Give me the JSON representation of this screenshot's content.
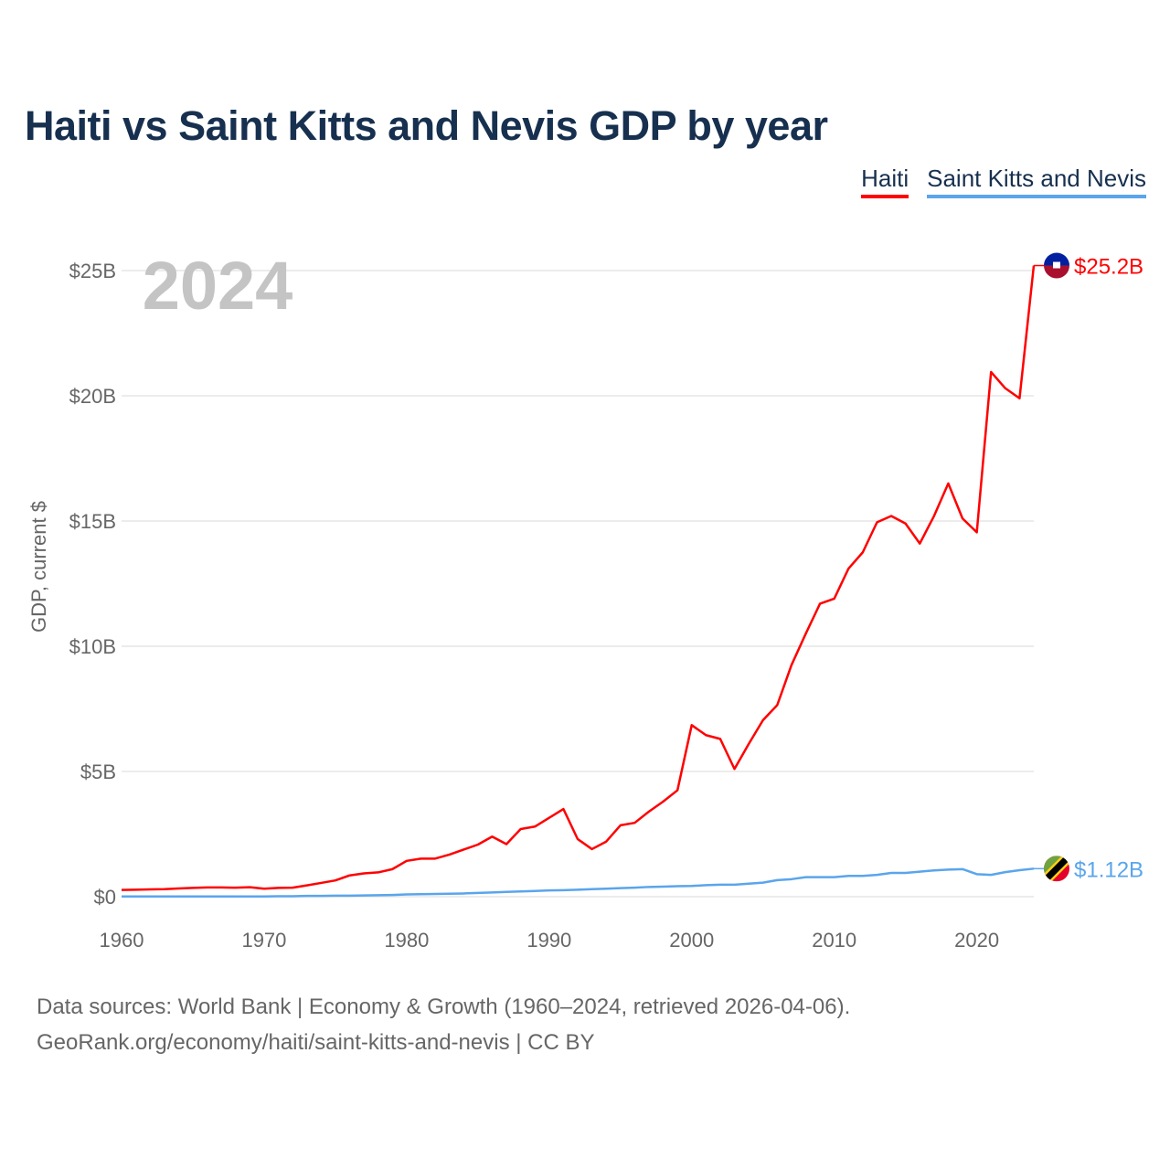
{
  "title": "Haiti vs Saint Kitts and Nevis GDP by year",
  "source_line1": "Data sources: World Bank | Economy & Growth (1960–2024, retrieved 2026-04-06).",
  "source_line2": "GeoRank.org/economy/haiti/saint-kitts-and-nevis | CC BY",
  "chart_data": {
    "type": "line",
    "title": "Haiti vs Saint Kitts and Nevis GDP by year",
    "xlabel": "",
    "ylabel": "GDP, current $",
    "year_label": "2024",
    "xlim": [
      1960,
      2024
    ],
    "ylim": [
      0,
      25
    ],
    "grid": true,
    "legend_placement": "top-right",
    "x_ticks": [
      "1960",
      "1970",
      "1980",
      "1990",
      "2000",
      "2010",
      "2020"
    ],
    "y_ticks": [
      {
        "v": 0,
        "label": "$0"
      },
      {
        "v": 5,
        "label": "$5B"
      },
      {
        "v": 10,
        "label": "$10B"
      },
      {
        "v": 15,
        "label": "$15B"
      },
      {
        "v": 20,
        "label": "$20B"
      },
      {
        "v": 25,
        "label": "$25B"
      }
    ],
    "x": [
      1960,
      1961,
      1962,
      1963,
      1964,
      1965,
      1966,
      1967,
      1968,
      1969,
      1970,
      1971,
      1972,
      1973,
      1974,
      1975,
      1976,
      1977,
      1978,
      1979,
      1980,
      1981,
      1982,
      1983,
      1984,
      1985,
      1986,
      1987,
      1988,
      1989,
      1990,
      1991,
      1992,
      1993,
      1994,
      1995,
      1996,
      1997,
      1998,
      1999,
      2000,
      2001,
      2002,
      2003,
      2004,
      2005,
      2006,
      2007,
      2008,
      2009,
      2010,
      2011,
      2012,
      2013,
      2014,
      2015,
      2016,
      2017,
      2018,
      2019,
      2020,
      2021,
      2022,
      2023,
      2024
    ],
    "series": [
      {
        "name": "Haiti",
        "color": "#ff0000",
        "end_label": "$25.2B",
        "flag": "haiti-flag",
        "values": [
          0.27,
          0.28,
          0.29,
          0.3,
          0.33,
          0.35,
          0.37,
          0.37,
          0.36,
          0.38,
          0.32,
          0.35,
          0.36,
          0.45,
          0.55,
          0.65,
          0.85,
          0.93,
          0.97,
          1.1,
          1.43,
          1.52,
          1.52,
          1.68,
          1.88,
          2.08,
          2.4,
          2.1,
          2.7,
          2.8,
          3.15,
          3.5,
          2.3,
          1.9,
          2.2,
          2.85,
          2.95,
          3.4,
          3.8,
          4.25,
          6.85,
          6.45,
          6.3,
          5.1,
          6.1,
          7.05,
          7.65,
          9.25,
          10.5,
          11.7,
          11.9,
          13.1,
          13.75,
          14.95,
          15.2,
          14.9,
          14.1,
          15.2,
          16.5,
          15.1,
          14.55,
          20.95,
          20.3,
          19.9,
          25.2
        ]
      },
      {
        "name": "Saint Kitts and Nevis",
        "color": "#5aa5ec",
        "end_label": "$1.12B",
        "flag": "saint-kitts-and-nevis-flag",
        "values": [
          0.01,
          0.01,
          0.01,
          0.01,
          0.01,
          0.01,
          0.01,
          0.01,
          0.01,
          0.01,
          0.01,
          0.02,
          0.02,
          0.03,
          0.03,
          0.04,
          0.04,
          0.05,
          0.06,
          0.07,
          0.09,
          0.1,
          0.11,
          0.12,
          0.13,
          0.15,
          0.17,
          0.19,
          0.21,
          0.23,
          0.25,
          0.26,
          0.28,
          0.3,
          0.32,
          0.34,
          0.36,
          0.39,
          0.4,
          0.42,
          0.43,
          0.46,
          0.48,
          0.48,
          0.52,
          0.56,
          0.66,
          0.7,
          0.78,
          0.78,
          0.78,
          0.83,
          0.83,
          0.87,
          0.95,
          0.95,
          1.0,
          1.05,
          1.08,
          1.1,
          0.9,
          0.87,
          0.98,
          1.06,
          1.12
        ]
      }
    ]
  }
}
